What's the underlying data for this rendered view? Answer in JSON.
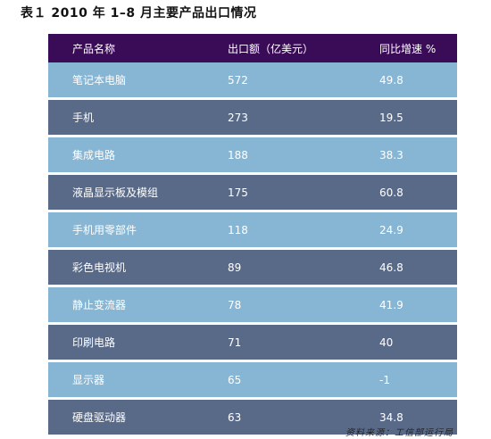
{
  "title": "表１ 2010 年 1–8 月主要产品出口情况",
  "colors": {
    "header_bg": "#3a0b57",
    "row_light": "#86b6d4",
    "row_dark": "#596a89"
  },
  "table": {
    "headers": [
      "产品名称",
      "出口额（亿美元）",
      "同比增速 %"
    ],
    "rows": [
      {
        "name": "笔记本电脑",
        "value": "572",
        "growth": "49.8"
      },
      {
        "name": "手机",
        "value": "273",
        "growth": "19.5"
      },
      {
        "name": "集成电路",
        "value": "188",
        "growth": "38.3"
      },
      {
        "name": "液晶显示板及模组",
        "value": "175",
        "growth": "60.8"
      },
      {
        "name": "手机用零部件",
        "value": "118",
        "growth": "24.9"
      },
      {
        "name": "彩色电视机",
        "value": "89",
        "growth": "46.8"
      },
      {
        "name": "静止变流器",
        "value": "78",
        "growth": "41.9"
      },
      {
        "name": "印刷电路",
        "value": "71",
        "growth": "40"
      },
      {
        "name": "显示器",
        "value": "65",
        "growth": "-1"
      },
      {
        "name": "硬盘驱动器",
        "value": "63",
        "growth": "34.8"
      }
    ]
  },
  "source": "资料来源：工信部运行局"
}
